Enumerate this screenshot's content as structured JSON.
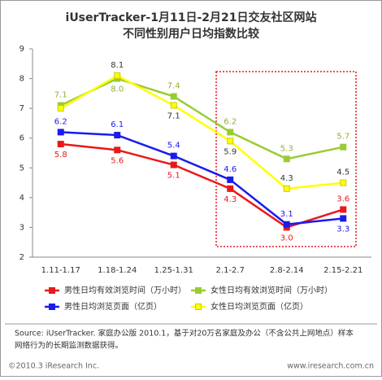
{
  "chart_data": {
    "type": "line",
    "title": "iUserTracker-1月11日-2月21日交友社区网站",
    "subtitle": "不同性别用户日均指数比较",
    "categories": [
      "1.11-1.17",
      "1.18-1.24",
      "1.25-1.31",
      "2.1-2.7",
      "2.8-2.14",
      "2.15-2.21"
    ],
    "ylim": [
      2,
      9
    ],
    "yticks": [
      2,
      3,
      4,
      5,
      6,
      7,
      8,
      9
    ],
    "grid": false,
    "series": [
      {
        "name": "男性日均有效浏览时间（万小时）",
        "color": "#e8191a",
        "values": [
          5.8,
          5.6,
          5.1,
          4.3,
          3.0,
          3.6
        ],
        "value_labels": [
          "5.8",
          "5.6",
          "5.1",
          "4.3",
          "3.0",
          "3.6"
        ]
      },
      {
        "name": "女性日均有效浏览时间（万小时）",
        "color": "#99cc33",
        "values": [
          7.1,
          8.0,
          7.4,
          6.2,
          5.3,
          5.7
        ],
        "value_labels": [
          "7.1",
          "8.0",
          "7.4",
          "6.2",
          "5.3",
          "5.7"
        ]
      },
      {
        "name": "男性日均浏览页面（亿页）",
        "color": "#1a1aee",
        "values": [
          6.2,
          6.1,
          5.4,
          4.6,
          3.1,
          3.3
        ],
        "value_labels": [
          "6.2",
          "6.1",
          "5.4",
          "4.6",
          "3.1",
          "3.3"
        ]
      },
      {
        "name": "女性日均浏览页面（亿页）",
        "color": "#ffff00",
        "values": [
          7.0,
          8.1,
          7.1,
          5.9,
          4.3,
          4.5
        ],
        "value_labels": [
          null,
          "8.1",
          "7.1",
          "5.9",
          "4.3",
          "4.5"
        ]
      }
    ],
    "source": "Source: iUserTracker. 家庭办公版 2010.1，基于对20万名家庭及办公（不含公共上网地点）样本",
    "source_line2": "网络行为的长期监测数据获得。",
    "copyright": "©2010.3 iResearch Inc.",
    "website": "www.iresearch.com.cn"
  }
}
